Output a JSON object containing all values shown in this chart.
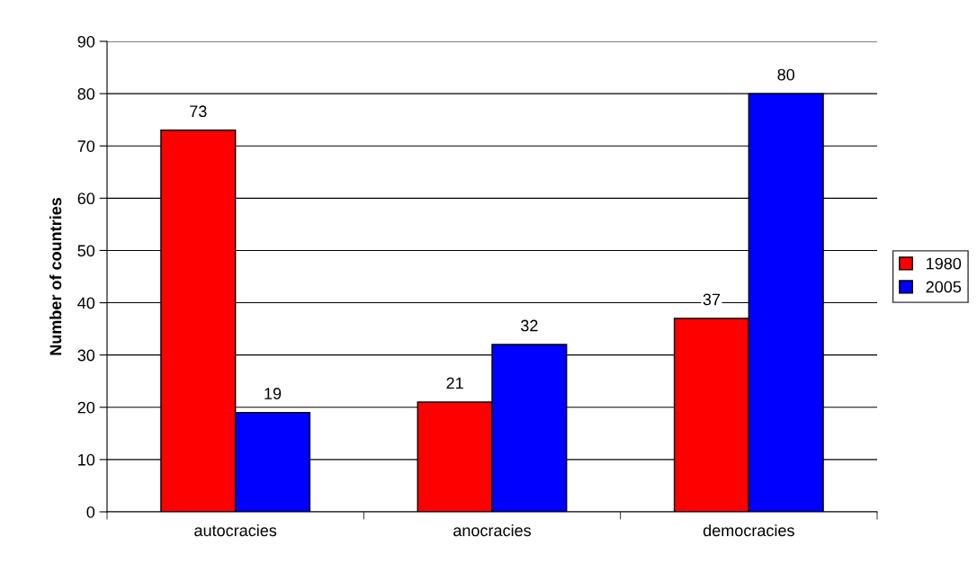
{
  "chart_data": {
    "type": "bar",
    "ylabel": "Number of countries",
    "categories": [
      "autocracies",
      "anocracies",
      "democracies"
    ],
    "series": [
      {
        "name": "1980",
        "color": "#ff0000",
        "values": [
          73,
          21,
          37
        ]
      },
      {
        "name": "2005",
        "color": "#0000ff",
        "values": [
          19,
          32,
          80
        ]
      }
    ],
    "ylim": [
      0,
      90
    ],
    "yticks": [
      0,
      10,
      20,
      30,
      40,
      50,
      60,
      70,
      80,
      90
    ],
    "grid": "y",
    "legend": "right",
    "data_labels": true
  }
}
